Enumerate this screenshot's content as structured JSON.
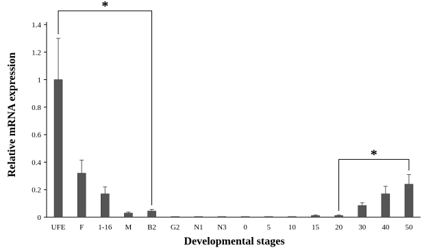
{
  "chart_data": {
    "type": "bar",
    "title": "",
    "xlabel": "Developmental stages",
    "ylabel": "Relative mRNA expression",
    "ylim": [
      0,
      1.4
    ],
    "yticks": [
      0,
      0.2,
      0.4,
      0.6,
      0.8,
      1,
      1.2,
      1.4
    ],
    "ytick_labels": [
      "0",
      "0.2",
      "0.4",
      "0.6",
      "0.8",
      "1",
      "1.2",
      "1.4"
    ],
    "grid": false,
    "bar_color": "#555555",
    "categories": [
      "UFE",
      "F",
      "1-16",
      "M",
      "B2",
      "G2",
      "N1",
      "N3",
      "0",
      "5",
      "10",
      "15",
      "20",
      "30",
      "40",
      "50"
    ],
    "values": [
      1.0,
      0.32,
      0.17,
      0.03,
      0.045,
      0.003,
      0.004,
      0.005,
      0.003,
      0.004,
      0.005,
      0.012,
      0.012,
      0.085,
      0.17,
      0.24
    ],
    "errors": [
      0.3,
      0.095,
      0.05,
      0.008,
      0.012,
      0.001,
      0.001,
      0.001,
      0.001,
      0.001,
      0.001,
      0.004,
      0.004,
      0.02,
      0.055,
      0.07
    ],
    "annotations": [
      {
        "label": "*",
        "from": "UFE",
        "to": "B2",
        "level": 1.5
      },
      {
        "label": "*",
        "from": "20",
        "to": "50",
        "level": 0.42
      }
    ]
  }
}
